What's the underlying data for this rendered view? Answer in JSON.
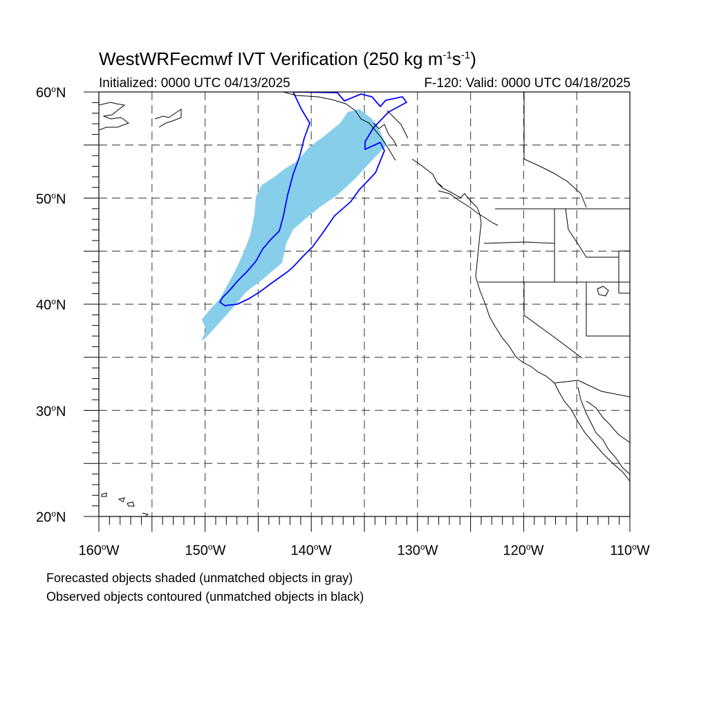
{
  "title": {
    "main": "WestWRFecmwf IVT Verification (250 kg m",
    "exp1": "-1",
    "mid": "s",
    "exp2": "-1",
    "end": ")"
  },
  "initialized": "Initialized: 0000 UTC 04/13/2025",
  "valid": "F-120: Valid: 0000 UTC 04/18/2025",
  "axes": {
    "lat_labels": [
      {
        "num": "60",
        "hemi": "N"
      },
      {
        "num": "50",
        "hemi": "N"
      },
      {
        "num": "40",
        "hemi": "N"
      },
      {
        "num": "30",
        "hemi": "N"
      },
      {
        "num": "20",
        "hemi": "N"
      }
    ],
    "lon_labels": [
      {
        "num": "160",
        "hemi": "W"
      },
      {
        "num": "150",
        "hemi": "W"
      },
      {
        "num": "140",
        "hemi": "W"
      },
      {
        "num": "130",
        "hemi": "W"
      },
      {
        "num": "120",
        "hemi": "W"
      },
      {
        "num": "110",
        "hemi": "W"
      }
    ],
    "deg_symbol": "o"
  },
  "colors": {
    "forecast_fill": "#87ceeb",
    "observed_contour": "#0000ff",
    "coastline": "#000000",
    "grid": "#555555"
  },
  "footnotes": {
    "line1": "Forecasted objects shaded (unmatched objects in gray)",
    "line2": "Observed objects contoured (unmatched objects in black)"
  }
}
